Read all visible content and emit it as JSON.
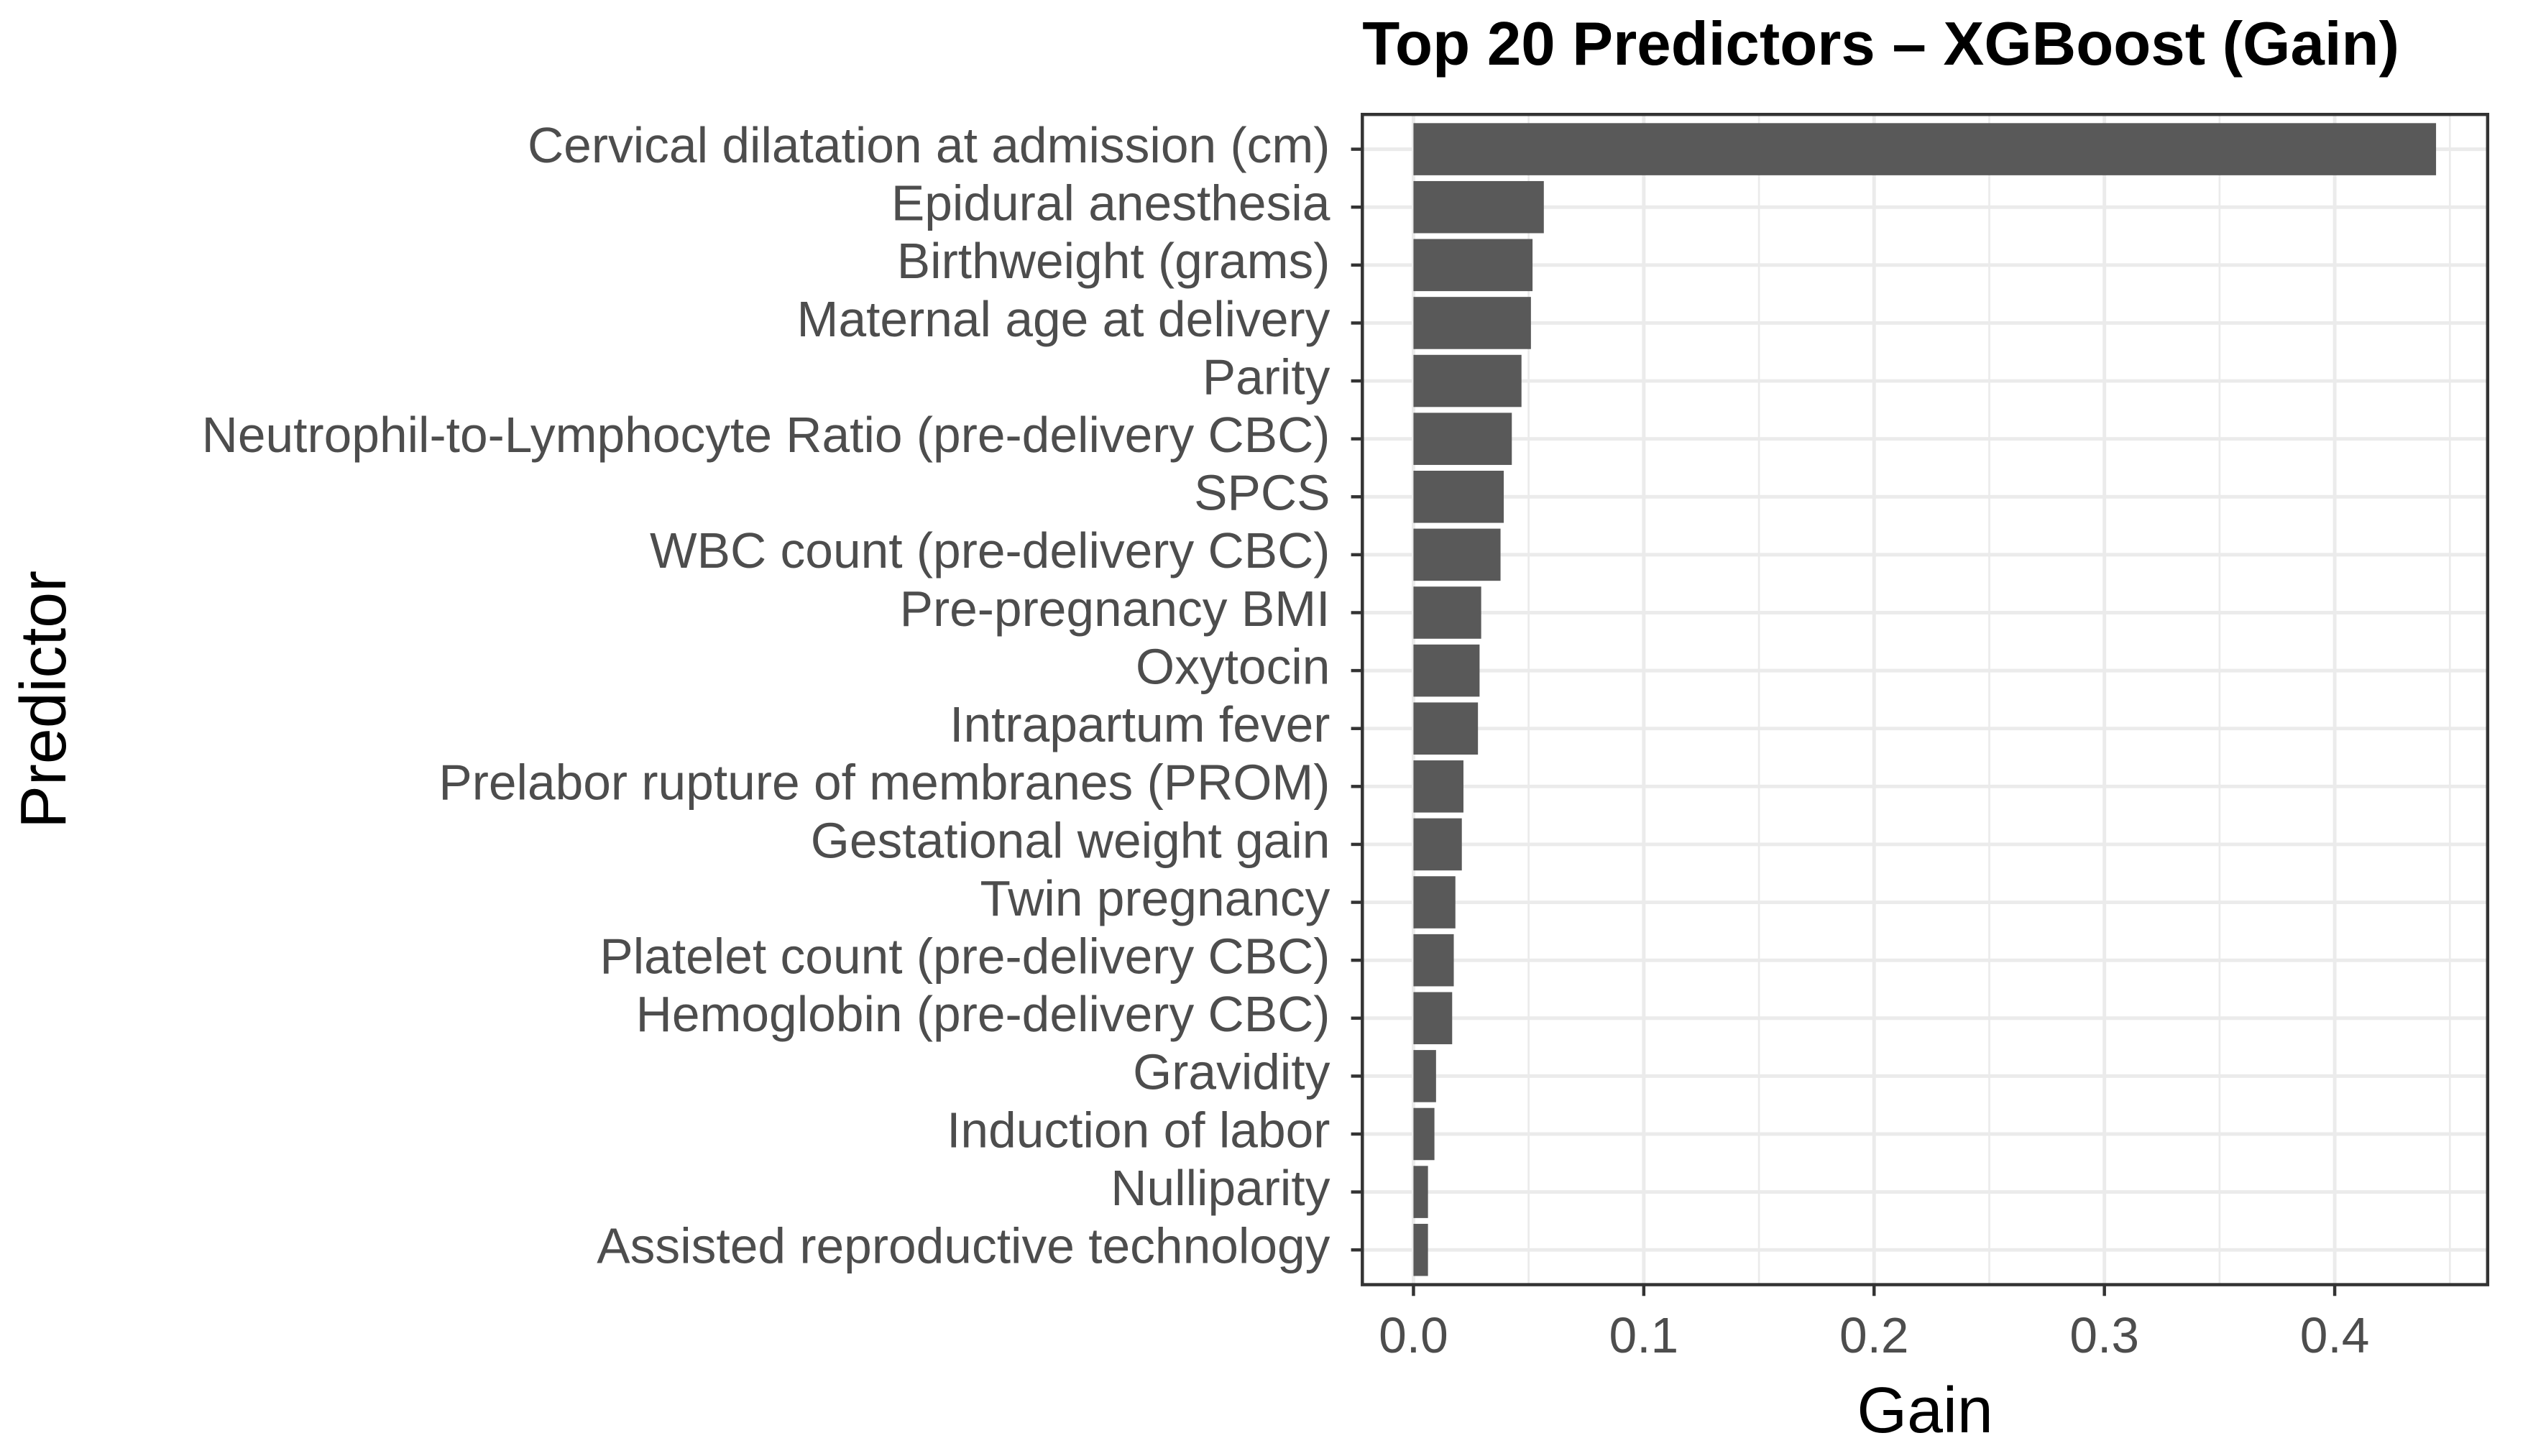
{
  "chart_data": {
    "type": "barh",
    "title": "Top 20 Predictors – XGBoost (Gain)",
    "x_label": "Gain",
    "y_label": "Predictor",
    "categories": [
      "Cervical dilatation at admission (cm)",
      "Epidural anesthesia",
      "Birthweight (grams)",
      "Maternal age at delivery",
      "Parity",
      "Neutrophil-to-Lymphocyte Ratio (pre-delivery CBC)",
      "SPCS",
      "WBC count (pre-delivery CBC)",
      "Pre-pregnancy BMI",
      "Oxytocin",
      "Intrapartum fever",
      "Prelabor rupture of membranes (PROM)",
      "Gestational weight gain",
      "Twin pregnancy",
      "Platelet count (pre-delivery CBC)",
      "Hemoglobin (pre-delivery CBC)",
      "Gravidity",
      "Induction of labor",
      "Nulliparity",
      "Assisted reproductive technology"
    ],
    "values": [
      0.444,
      0.0566,
      0.0517,
      0.051,
      0.0469,
      0.0427,
      0.0392,
      0.0378,
      0.0294,
      0.0287,
      0.028,
      0.0217,
      0.021,
      0.0182,
      0.0175,
      0.0168,
      0.0098,
      0.0091,
      0.0063,
      0.0063
    ],
    "color": "#595959",
    "xlim": [
      -0.0222,
      0.4664
    ],
    "xticks": [
      {
        "value": 0,
        "label": "0.0"
      },
      0.1,
      0.2,
      0.3,
      0.4
    ],
    "grid": true
  }
}
